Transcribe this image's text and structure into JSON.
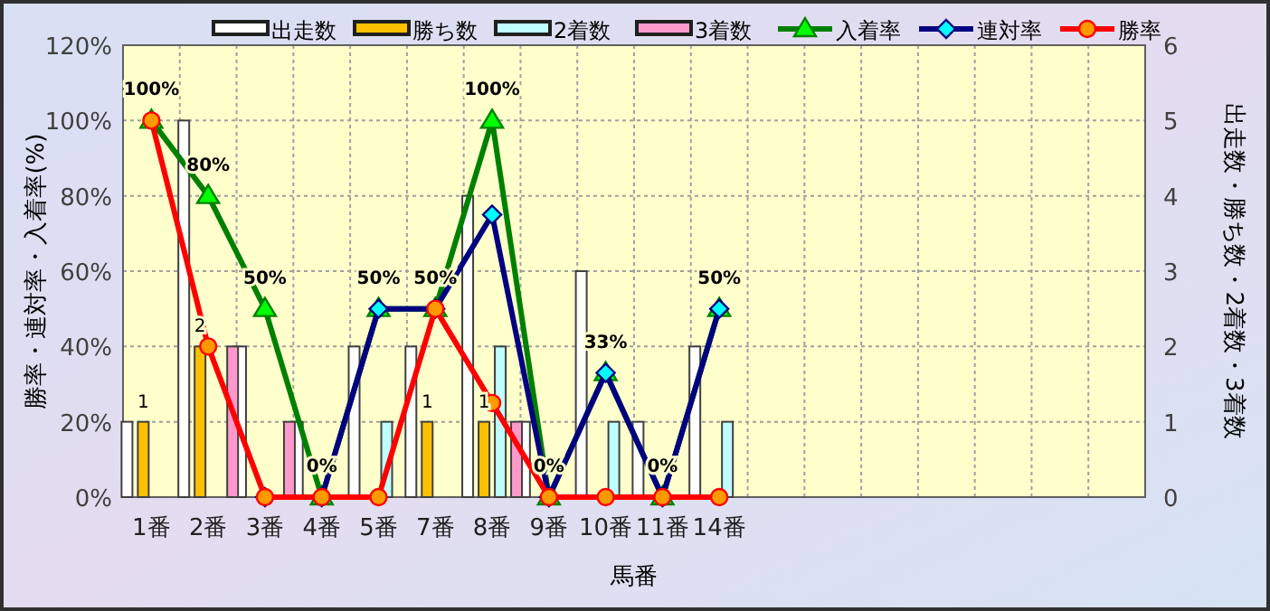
{
  "chart_data": {
    "type": "bar",
    "xlabel": "馬番",
    "ylabel": "勝率・連対率・入着率(%)",
    "y2label": "出走数・勝ち数・2着数・3着数",
    "categories": [
      "1番",
      "2番",
      "3番",
      "4番",
      "5番",
      "7番",
      "8番",
      "9番",
      "10番",
      "11番",
      "14番",
      null,
      null,
      null,
      null,
      null,
      null,
      null
    ],
    "ylim": [
      0,
      120
    ],
    "yticks": [
      {
        "value": 0,
        "label": "0%"
      },
      {
        "value": 20,
        "label": "20%"
      },
      {
        "value": 40,
        "label": "40%"
      },
      {
        "value": 60,
        "label": "60%"
      },
      {
        "value": 80,
        "label": "80%"
      },
      {
        "value": 100,
        "label": "100%"
      },
      {
        "value": 120,
        "label": "120%"
      }
    ],
    "y2lim": [
      0,
      6
    ],
    "y2ticks": [
      0,
      1,
      2,
      3,
      4,
      5,
      6
    ],
    "grid": true,
    "legend": "top",
    "series": [
      {
        "name": "出走数",
        "axis": "y2",
        "color": "#ffffff",
        "values": [
          1,
          5,
          2,
          1,
          2,
          2,
          4,
          1,
          3,
          1,
          2,
          null,
          null,
          null,
          null,
          null,
          null,
          null
        ]
      },
      {
        "name": "勝ち数",
        "axis": "y2",
        "color": "#ffc000",
        "values": [
          1,
          2,
          0,
          0,
          0,
          1,
          1,
          0,
          0,
          0,
          0,
          null,
          null,
          null,
          null,
          null,
          null,
          null
        ],
        "value_labels": [
          "1",
          "2",
          null,
          null,
          null,
          "1",
          "1",
          null,
          null,
          null,
          null,
          null,
          null,
          null,
          null,
          null,
          null,
          null
        ]
      },
      {
        "name": "2着数",
        "axis": "y2",
        "color": "#c0ffff",
        "values": [
          0,
          0,
          0,
          0,
          1,
          0,
          2,
          0,
          1,
          0,
          1,
          null,
          null,
          null,
          null,
          null,
          null,
          null
        ]
      },
      {
        "name": "3着数",
        "axis": "y2",
        "color": "#ff99cc",
        "values": [
          0,
          2,
          1,
          0,
          0,
          0,
          1,
          0,
          0,
          0,
          0,
          null,
          null,
          null,
          null,
          null,
          null,
          null
        ]
      },
      {
        "name": "入着率",
        "type": "line",
        "color": "#008000",
        "marker": "triangle",
        "values": [
          100,
          80,
          50,
          0,
          50,
          50,
          100,
          0,
          33,
          0,
          50,
          null,
          null,
          null,
          null,
          null,
          null,
          null
        ],
        "value_labels": [
          "100%",
          "80%",
          "50%",
          "0%",
          "50%",
          "50%",
          "100%",
          "0%",
          "33%",
          "0%",
          "50%",
          null,
          null,
          null,
          null,
          null,
          null,
          null
        ]
      },
      {
        "name": "連対率",
        "type": "line",
        "color": "#000080",
        "marker": "diamond",
        "values": [
          null,
          null,
          0,
          0,
          50,
          50,
          75,
          0,
          33,
          0,
          50,
          null,
          null,
          null,
          null,
          null,
          null,
          null
        ]
      },
      {
        "name": "勝率",
        "type": "line",
        "color": "#ff0000",
        "marker": "circle",
        "values": [
          100,
          40,
          0,
          0,
          0,
          50,
          25,
          0,
          0,
          0,
          0,
          null,
          null,
          null,
          null,
          null,
          null,
          null
        ]
      }
    ]
  }
}
